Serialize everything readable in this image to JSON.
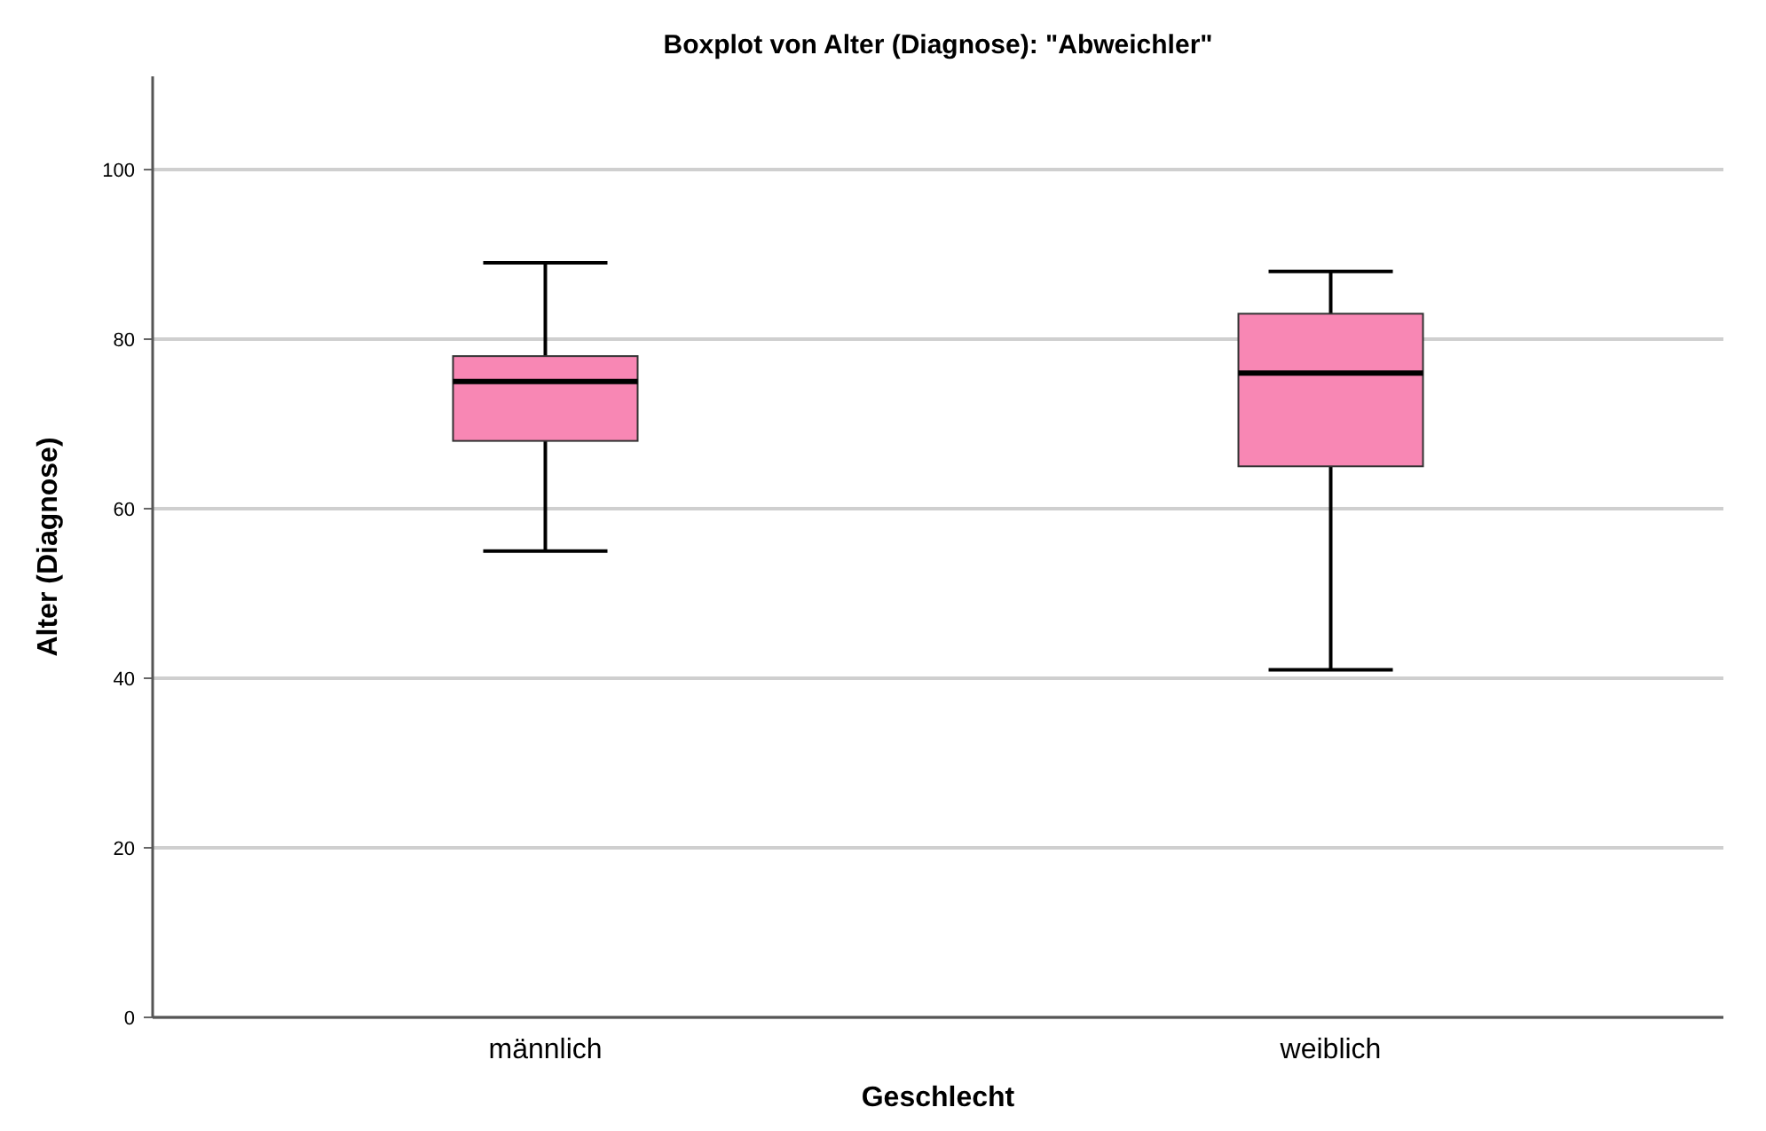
{
  "chart_data": {
    "type": "box",
    "title": "Boxplot  von Alter (Diagnose): \"Abweichler\"",
    "xlabel": "Geschlecht",
    "ylabel": "Alter (Diagnose)",
    "categories": [
      "männlich",
      "weiblich"
    ],
    "boxes": [
      {
        "low": 55,
        "q1": 68,
        "median": 75,
        "q3": 78,
        "high": 89
      },
      {
        "low": 41,
        "q1": 65,
        "median": 76,
        "q3": 83,
        "high": 88
      }
    ],
    "color": "#f887b4",
    "ylim": [
      0,
      111
    ],
    "yticks": [
      0,
      20,
      40,
      60,
      80,
      100
    ],
    "grid": "y"
  }
}
